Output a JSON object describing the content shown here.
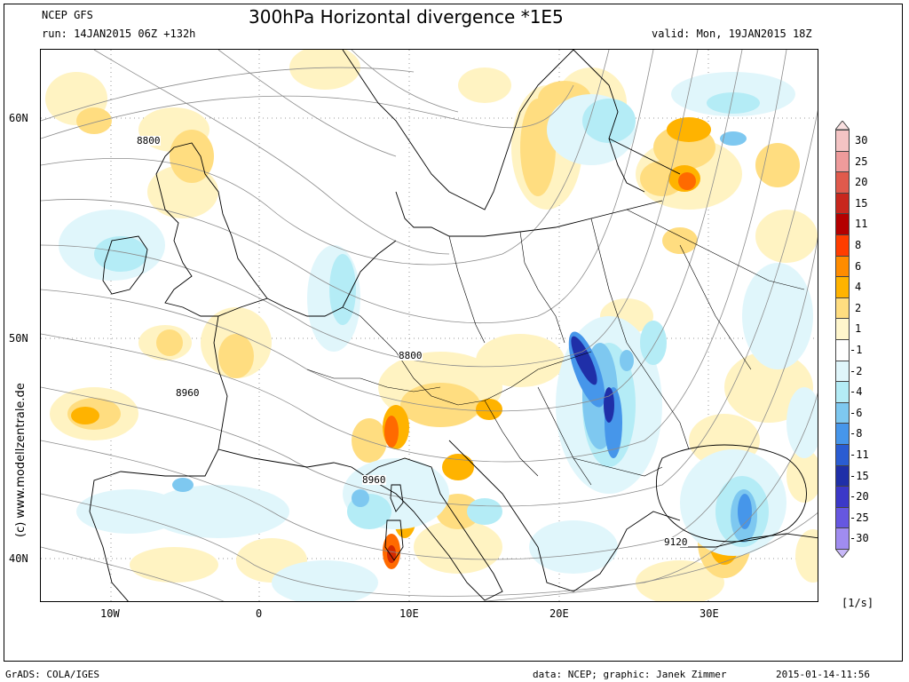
{
  "header": {
    "model": "NCEP GFS",
    "run": "run: 14JAN2015 06Z +132h",
    "title": "300hPa Horizontal divergence *1E5",
    "valid": "valid: Mon, 19JAN2015 18Z"
  },
  "map": {
    "x_ticks": [
      "10W",
      "0",
      "10E",
      "20E",
      "30E"
    ],
    "y_ticks": [
      "60N",
      "50N",
      "40N"
    ],
    "contour_labels": [
      "8800",
      "8960",
      "8800",
      "8960",
      "9120"
    ],
    "vertical_credit": "(c) www.modellzentrale.de"
  },
  "colorbar": {
    "labels": [
      "30",
      "25",
      "20",
      "15",
      "11",
      "8",
      "6",
      "4",
      "2",
      "1",
      "-1",
      "-2",
      "-4",
      "-6",
      "-8",
      "-11",
      "-15",
      "-20",
      "-25",
      "-30"
    ],
    "colors": [
      "#f4c4c4",
      "#ee9b9b",
      "#e05a4c",
      "#c8271d",
      "#b40000",
      "#ff3d00",
      "#ff8c00",
      "#ffb300",
      "#ffdd80",
      "#fff6cc",
      "#ffffff",
      "#e0f6fb",
      "#b4ecf6",
      "#7ec8f0",
      "#4696ea",
      "#2a5cd2",
      "#1f2fa8",
      "#3b38c8",
      "#6657e0",
      "#a08cf0"
    ],
    "unit": "[1/s]"
  },
  "footer": {
    "left": "GrADS: COLA/IGES",
    "middle": "data: NCEP; graphic: Janek Zimmer",
    "right": "2015-01-14-11:56"
  }
}
